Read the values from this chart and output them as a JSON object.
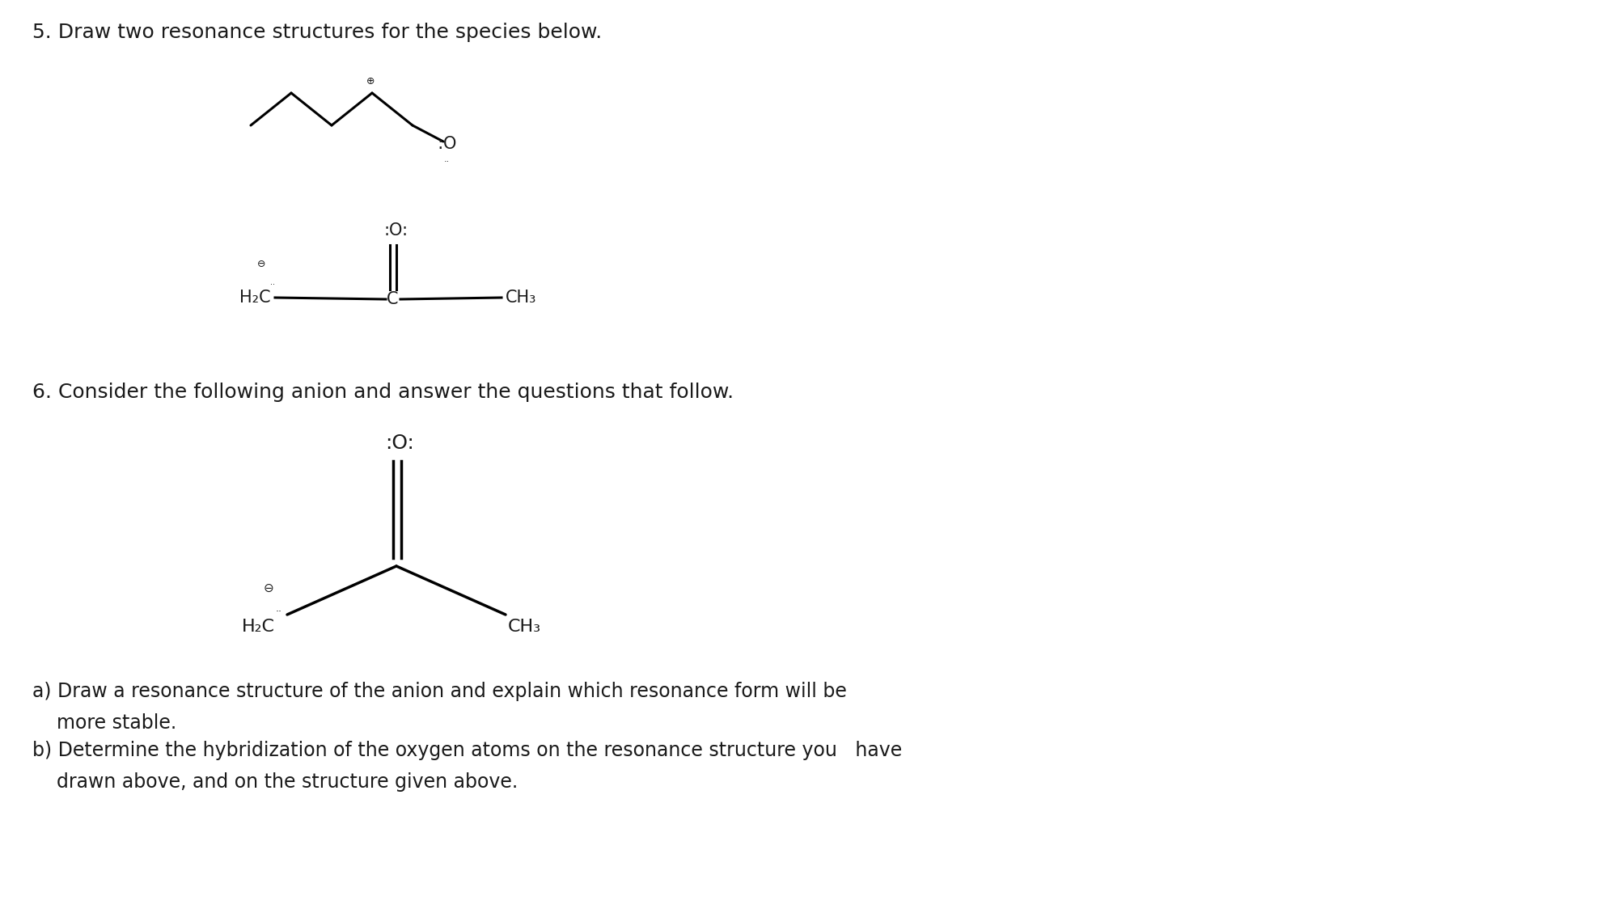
{
  "bg_color": "#ffffff",
  "text_color": "#1a1a1a",
  "title5": "5. Draw two resonance structures for the species below.",
  "title6": "6. Consider the following anion and answer the questions that follow.",
  "qa_line1": "a) Draw a resonance structure of the anion and explain which resonance form will be",
  "qa_line2": "    more stable.",
  "qb_line1": "b) Determine the hybridization of the oxygen atoms on the resonance structure you   have",
  "qb_line2": "    drawn above, and on the structure given above.",
  "font_size_title": 18,
  "font_size_chem": 15,
  "font_size_questions": 17
}
